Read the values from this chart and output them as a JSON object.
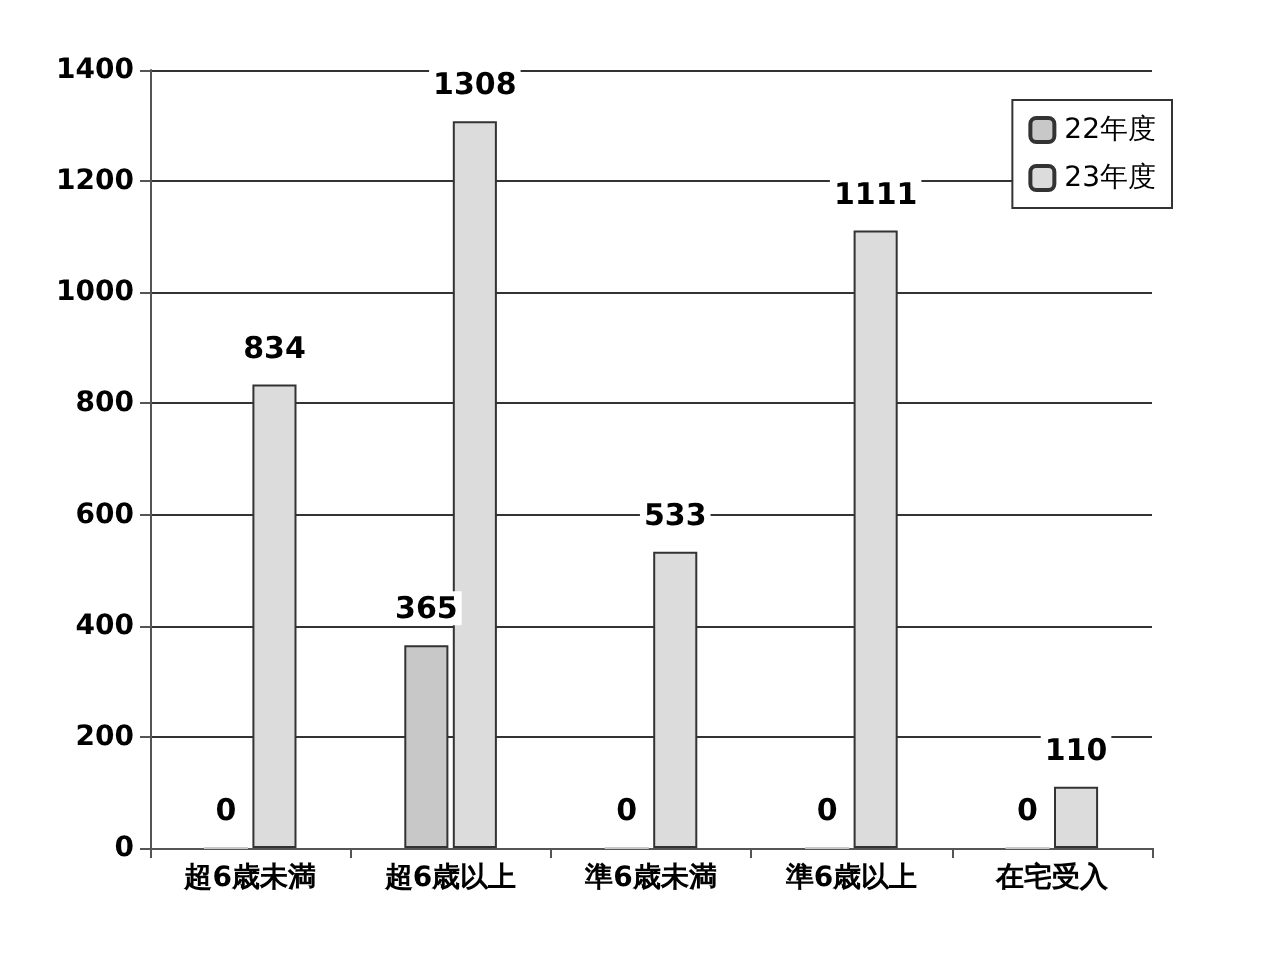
{
  "chart_data": {
    "type": "bar",
    "categories": [
      "超6歳未満",
      "超6歳以上",
      "準6歳未満",
      "準6歳以上",
      "在宅受入"
    ],
    "series": [
      {
        "name": "22年度",
        "color": "#c8c8c8",
        "values": [
          0,
          365,
          0,
          0,
          0
        ]
      },
      {
        "name": "23年度",
        "color": "#dcdcdc",
        "values": [
          834,
          1308,
          533,
          1111,
          110
        ]
      }
    ],
    "ylim": [
      0,
      1400
    ],
    "yticks": [
      0,
      200,
      400,
      600,
      800,
      1000,
      1200,
      1400
    ],
    "grid": "y",
    "legend": "top right",
    "data_labels": true
  }
}
